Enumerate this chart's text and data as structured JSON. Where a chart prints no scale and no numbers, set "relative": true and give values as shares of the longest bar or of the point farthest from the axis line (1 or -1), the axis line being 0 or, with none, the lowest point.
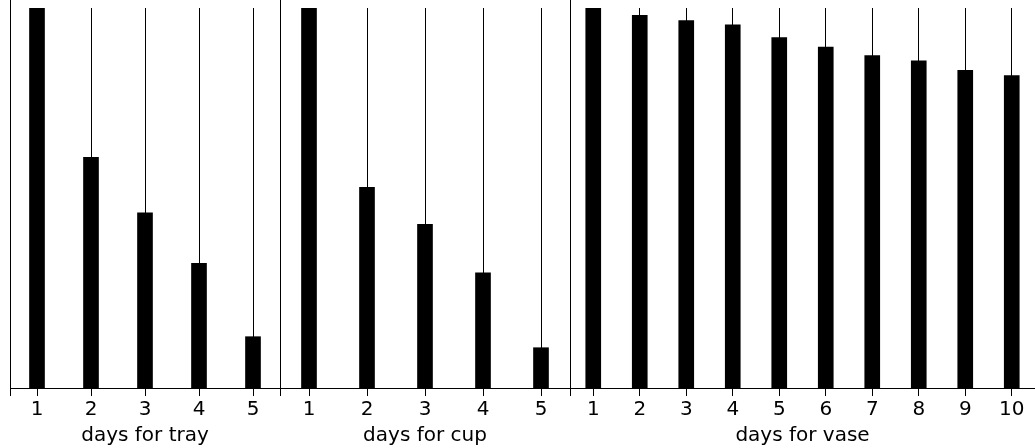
{
  "chart_data": [
    {
      "type": "bar",
      "xlabel": "days for tray",
      "categories": [
        "1",
        "2",
        "3",
        "4",
        "5"
      ],
      "values": [
        1.0,
        0.607,
        0.461,
        0.328,
        0.135
      ],
      "color": "#000000",
      "relative": true,
      "grid": "x"
    },
    {
      "type": "bar",
      "xlabel": "days for cup",
      "categories": [
        "1",
        "2",
        "3",
        "4",
        "5"
      ],
      "values": [
        1.0,
        0.528,
        0.431,
        0.303,
        0.106
      ],
      "color": "#000000",
      "relative": true,
      "grid": "x"
    },
    {
      "type": "bar",
      "xlabel": "days for vase",
      "categories": [
        "1",
        "2",
        "3",
        "4",
        "5",
        "6",
        "7",
        "8",
        "9",
        "10"
      ],
      "values": [
        1.0,
        0.981,
        0.967,
        0.956,
        0.922,
        0.897,
        0.875,
        0.861,
        0.836,
        0.822
      ],
      "color": "#000000",
      "relative": true,
      "grid": "x"
    }
  ]
}
